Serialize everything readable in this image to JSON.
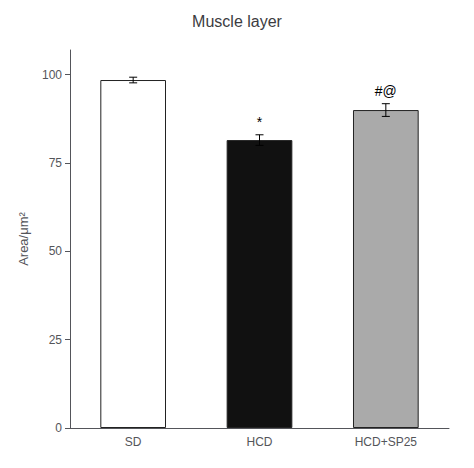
{
  "chart_data": {
    "type": "bar",
    "title": "Muscle layer",
    "categories": [
      "SD",
      "HCD",
      "HCD+SP25"
    ],
    "values": [
      98.5,
      81.5,
      90.0
    ],
    "errors": [
      0.8,
      1.5,
      1.8
    ],
    "colors": [
      "#ffffff",
      "#111111",
      "#aaaaaa"
    ],
    "ylabel": "Area/μm²",
    "ylim": [
      0,
      107
    ],
    "yticks": [
      0,
      25,
      50,
      75,
      100
    ],
    "annotations": [
      {
        "text": "*",
        "x": "HCD",
        "y": 84.5
      },
      {
        "text": "#@",
        "x": "HCD+SP25",
        "y": 93.5
      }
    ],
    "grid": false
  }
}
